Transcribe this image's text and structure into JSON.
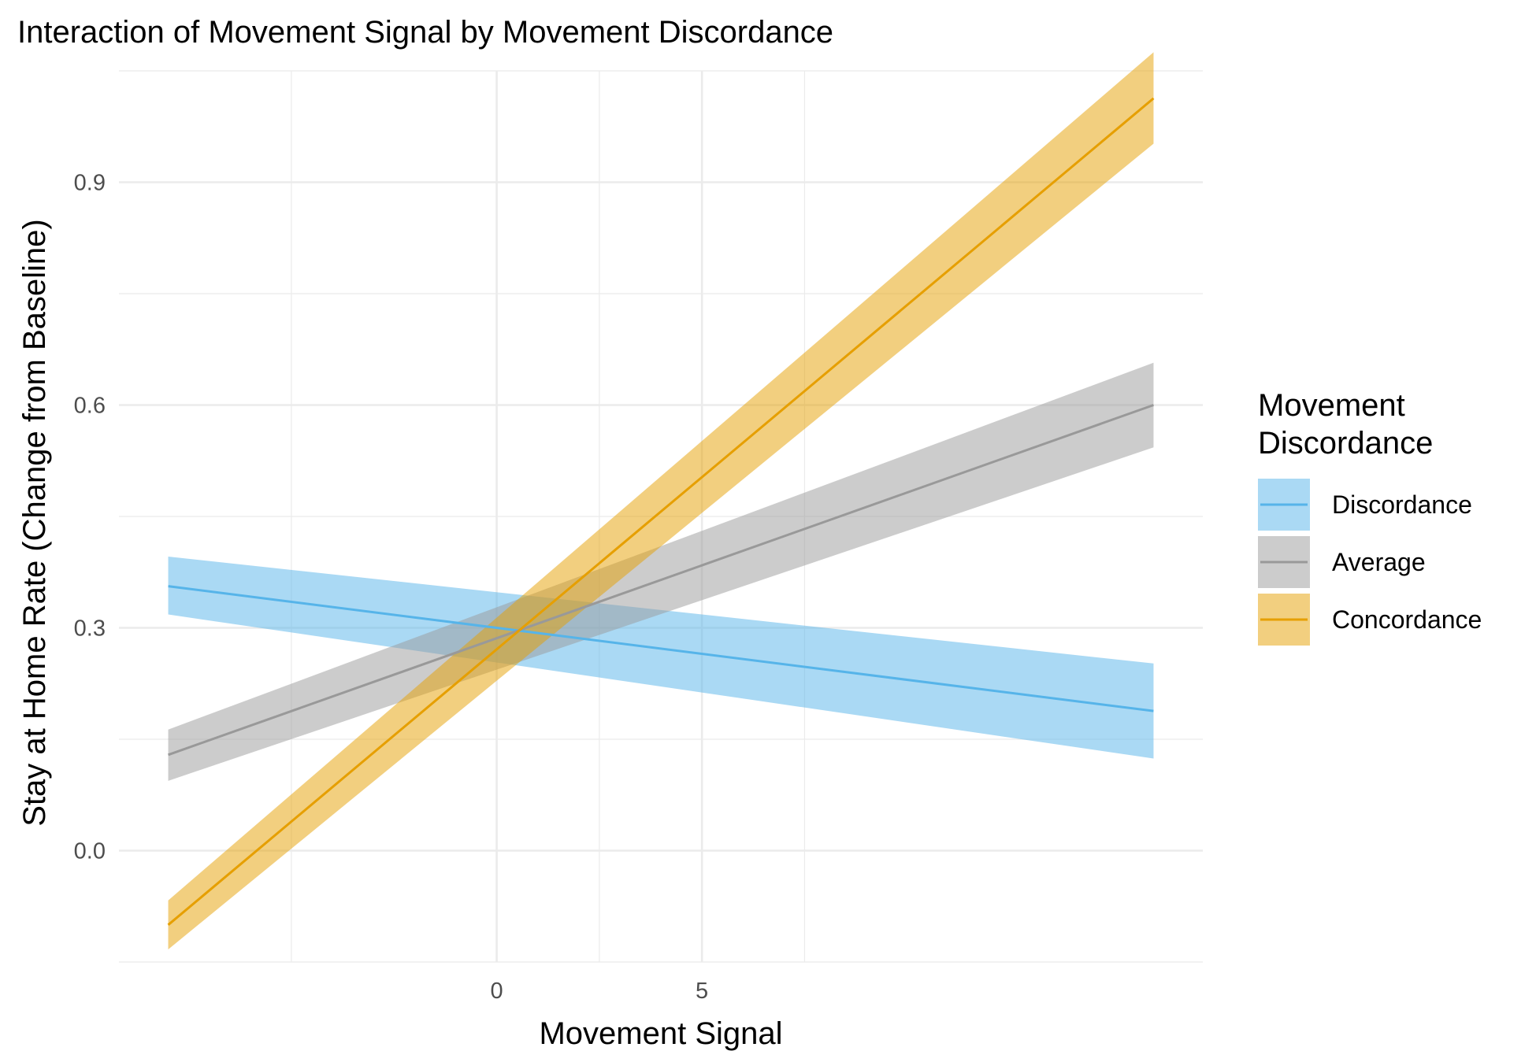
{
  "chart_data": {
    "type": "line",
    "title": "Interaction of Movement Signal by Movement Discordance",
    "xlabel": "Movement Signal",
    "ylabel": "Stay at Home Rate (Change from Baseline)",
    "xlim": [
      -9.2,
      17.2
    ],
    "ylim": [
      -0.15,
      1.05
    ],
    "x_ticks": [
      0,
      5
    ],
    "x_tick_labels": [
      "0",
      "5"
    ],
    "x_minor_ticks": [
      -5,
      2.5,
      7.5
    ],
    "y_ticks": [
      0.0,
      0.3,
      0.6,
      0.9
    ],
    "y_tick_labels": [
      "0.0",
      "0.3",
      "0.6",
      "0.9"
    ],
    "y_minor_ticks": [
      -0.15,
      0.15,
      0.45,
      0.75,
      1.05
    ],
    "grid": true,
    "legend": {
      "title_lines": [
        "Movement",
        "Discordance"
      ],
      "position": "right"
    },
    "series": [
      {
        "name": "Discordance",
        "color": "#56B4E9",
        "x": [
          -8.0,
          16.0
        ],
        "y": [
          0.356,
          0.188
        ],
        "ci_lower": [
          0.318,
          0.124
        ],
        "ci_upper": [
          0.396,
          0.252
        ]
      },
      {
        "name": "Average",
        "color": "#999999",
        "x": [
          -8.0,
          16.0
        ],
        "y": [
          0.129,
          0.6
        ],
        "ci_lower": [
          0.094,
          0.543
        ],
        "ci_upper": [
          0.163,
          0.657
        ]
      },
      {
        "name": "Concordance",
        "color": "#E69F00",
        "x": [
          -8.0,
          16.0
        ],
        "y": [
          -0.1,
          1.013
        ],
        "ci_lower": [
          -0.133,
          0.952
        ],
        "ci_upper": [
          -0.067,
          1.075
        ]
      }
    ]
  }
}
